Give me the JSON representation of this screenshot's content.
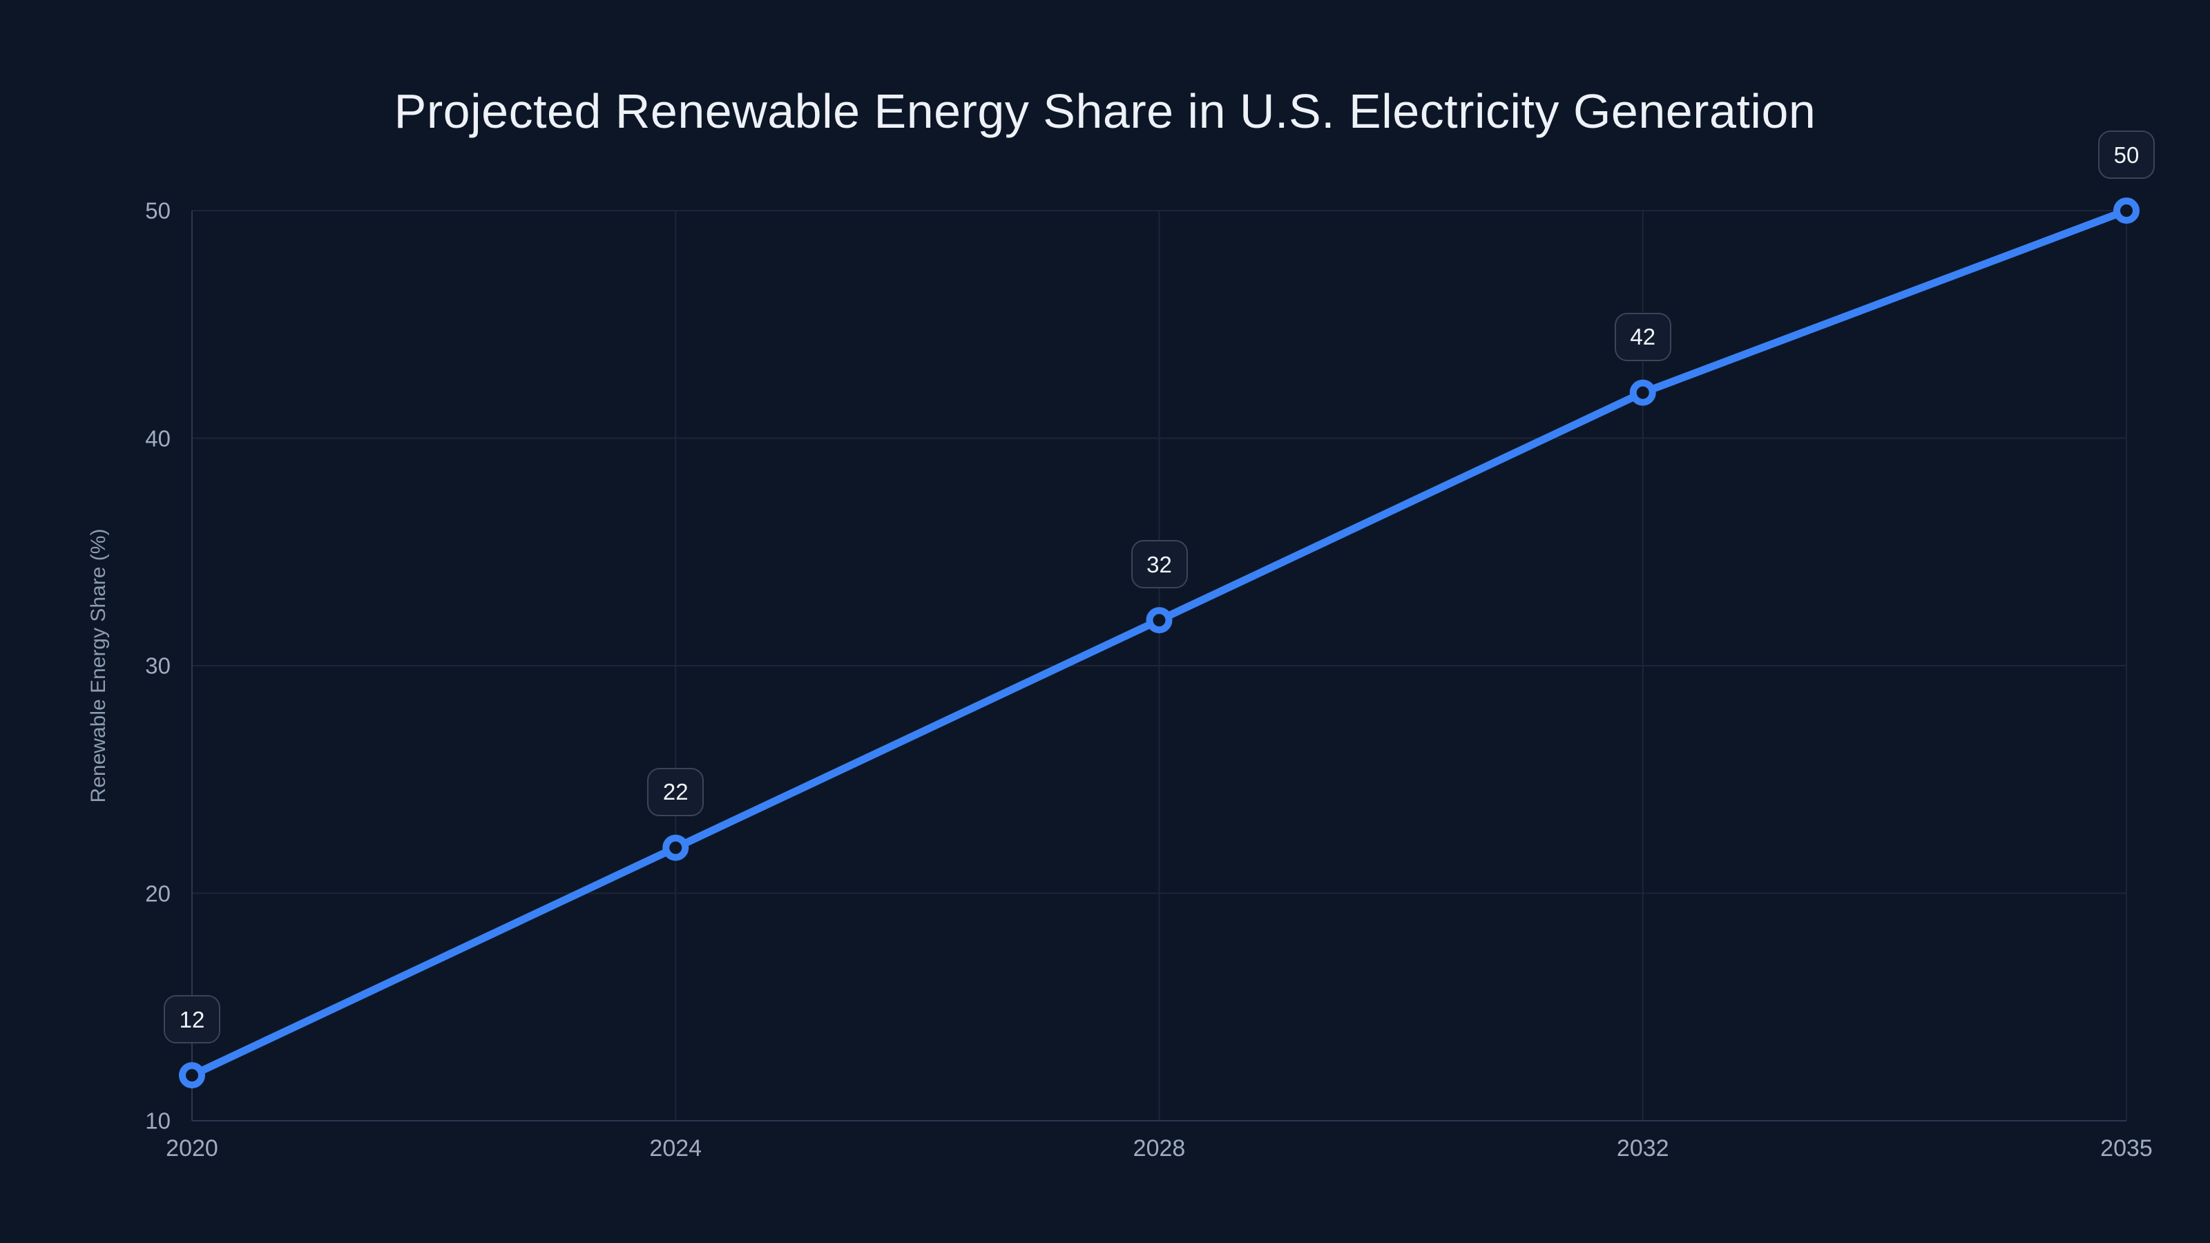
{
  "chart_data": {
    "type": "line",
    "title": "Projected Renewable Energy Share in U.S. Electricity Generation",
    "xlabel": "",
    "ylabel": "Renewable Energy Share (%)",
    "categories": [
      "2020",
      "2024",
      "2028",
      "2032",
      "2035"
    ],
    "series": [
      {
        "name": "Renewable Energy Share",
        "values": [
          12,
          22,
          32,
          42,
          50
        ],
        "point_labels": [
          "12",
          "22",
          "32",
          "42",
          "50"
        ]
      }
    ],
    "x_type": "categorical",
    "ylim": [
      10,
      50
    ],
    "yticks": [
      10,
      20,
      30,
      40,
      50
    ],
    "grid": true,
    "legend_position": "none",
    "colors": {
      "background": "#0d1626",
      "line": "#3b82f6",
      "marker_fill": "#0d1626",
      "grid": "#1c2638",
      "axis": "#2b3850",
      "title_text": "#eef2f8",
      "tick_text": "#9fadbf",
      "axis_label_text": "#8d9cb0",
      "badge_bg": "#131c2e",
      "badge_border": "#3b4559",
      "badge_text": "#f1f5f9"
    }
  }
}
